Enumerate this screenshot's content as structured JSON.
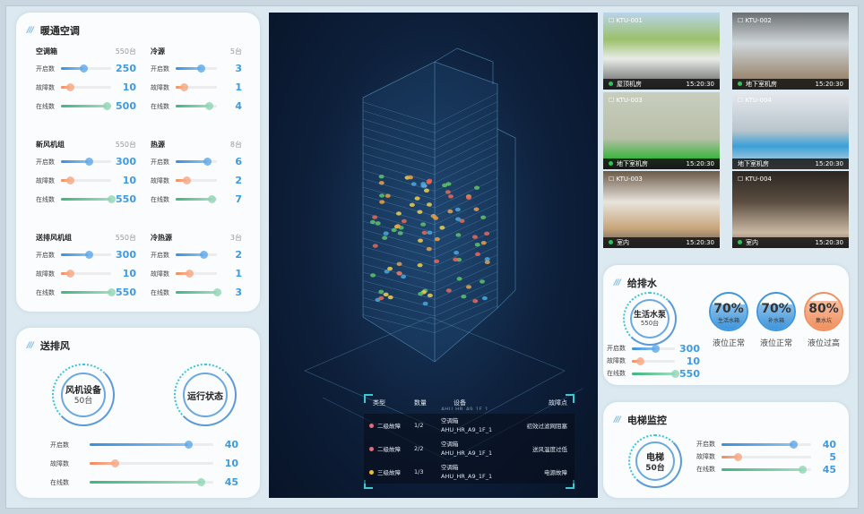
{
  "hvac": {
    "title": "暖通空调",
    "groups": [
      {
        "name": "空调箱",
        "total": "550台",
        "max": 550,
        "rows": [
          {
            "label": "开启数",
            "value": "250",
            "n": 250
          },
          {
            "label": "故障数",
            "value": "10",
            "n": 10
          },
          {
            "label": "在线数",
            "value": "500",
            "n": 500
          }
        ]
      },
      {
        "name": "冷源",
        "total": "5台",
        "max": 5,
        "rows": [
          {
            "label": "开启数",
            "value": "3",
            "n": 3
          },
          {
            "label": "故障数",
            "value": "1",
            "n": 1
          },
          {
            "label": "在线数",
            "value": "4",
            "n": 4
          }
        ]
      },
      {
        "name": "新风机组",
        "total": "550台",
        "max": 550,
        "rows": [
          {
            "label": "开启数",
            "value": "300",
            "n": 300
          },
          {
            "label": "故障数",
            "value": "10",
            "n": 10
          },
          {
            "label": "在线数",
            "value": "550",
            "n": 550
          }
        ]
      },
      {
        "name": "热源",
        "total": "8台",
        "max": 8,
        "rows": [
          {
            "label": "开启数",
            "value": "6",
            "n": 6
          },
          {
            "label": "故障数",
            "value": "2",
            "n": 2
          },
          {
            "label": "在线数",
            "value": "7",
            "n": 7
          }
        ]
      },
      {
        "name": "送排风机组",
        "total": "550台",
        "max": 550,
        "rows": [
          {
            "label": "开启数",
            "value": "300",
            "n": 300
          },
          {
            "label": "故障数",
            "value": "10",
            "n": 10
          },
          {
            "label": "在线数",
            "value": "550",
            "n": 550
          }
        ]
      },
      {
        "name": "冷热源",
        "total": "3台",
        "max": 3,
        "rows": [
          {
            "label": "开启数",
            "value": "2",
            "n": 2
          },
          {
            "label": "故障数",
            "value": "1",
            "n": 1
          },
          {
            "label": "在线数",
            "value": "3",
            "n": 3
          }
        ]
      }
    ]
  },
  "ventilation": {
    "title": "送排风",
    "device_label": "风机设备",
    "device_count": "50台",
    "status_label": "运行状态",
    "max": 50,
    "rows": [
      {
        "label": "开启数",
        "value": "40",
        "n": 40
      },
      {
        "label": "故障数",
        "value": "10",
        "n": 10
      },
      {
        "label": "在线数",
        "value": "45",
        "n": 45
      }
    ]
  },
  "faults": {
    "headers": [
      "类型",
      "数量",
      "设备",
      "故障点"
    ],
    "clipped_device": "AHU_HR_A9_1F_1",
    "rows": [
      {
        "level": "二级故障",
        "color": "#e8697a",
        "count": "1/2",
        "device": "空调箱",
        "code": "AHU_HR_A9_1F_1",
        "point": "初效过滤网阻塞"
      },
      {
        "level": "二级故障",
        "color": "#e8697a",
        "count": "2/2",
        "device": "空调箱",
        "code": "AHU_HR_A9_1F_1",
        "point": "送风温度过低"
      },
      {
        "level": "三级故障",
        "color": "#f2b830",
        "count": "1/3",
        "device": "空调箱",
        "code": "AHU_HR_A9_1F_1",
        "point": "电源故障"
      }
    ]
  },
  "cameras": [
    {
      "id": "KTU-001",
      "location": "屋顶机房",
      "time": "15:20:30",
      "online": true
    },
    {
      "id": "KTU-002",
      "location": "地下室机房",
      "time": "15:20:30",
      "online": true
    },
    {
      "id": "KTU-003",
      "location": "地下室机房",
      "time": "15:20:30",
      "online": true
    },
    {
      "id": "KTU-004",
      "location": "地下室机房",
      "time": "15:20:30",
      "online": false
    },
    {
      "id": "KTU-003",
      "location": "室内",
      "time": "15:20:30",
      "online": true
    },
    {
      "id": "KTU-004",
      "location": "室内",
      "time": "15:20:30",
      "online": true
    }
  ],
  "water": {
    "title": "给排水",
    "pump_label": "生活水泵",
    "pump_count": "550台",
    "max": 550,
    "rows": [
      {
        "label": "开启数",
        "value": "300",
        "n": 300
      },
      {
        "label": "故障数",
        "value": "10",
        "n": 10
      },
      {
        "label": "在线数",
        "value": "550",
        "n": 550
      }
    ],
    "tanks": [
      {
        "pct": "70%",
        "level": 0.7,
        "name": "生活水箱",
        "status": "液位正常",
        "color": "#3d95dc"
      },
      {
        "pct": "70%",
        "level": 0.7,
        "name": "补水箱",
        "status": "液位正常",
        "color": "#3d95dc"
      },
      {
        "pct": "80%",
        "level": 0.8,
        "name": "集水坑",
        "status": "液位过高",
        "color": "#f0905e"
      }
    ]
  },
  "elevator": {
    "title": "电梯监控",
    "label": "电梯",
    "count": "50台",
    "max": 50,
    "rows": [
      {
        "label": "开启数",
        "value": "40",
        "n": 40
      },
      {
        "label": "故障数",
        "value": "5",
        "n": 5
      },
      {
        "label": "在线数",
        "value": "45",
        "n": 45
      }
    ]
  }
}
